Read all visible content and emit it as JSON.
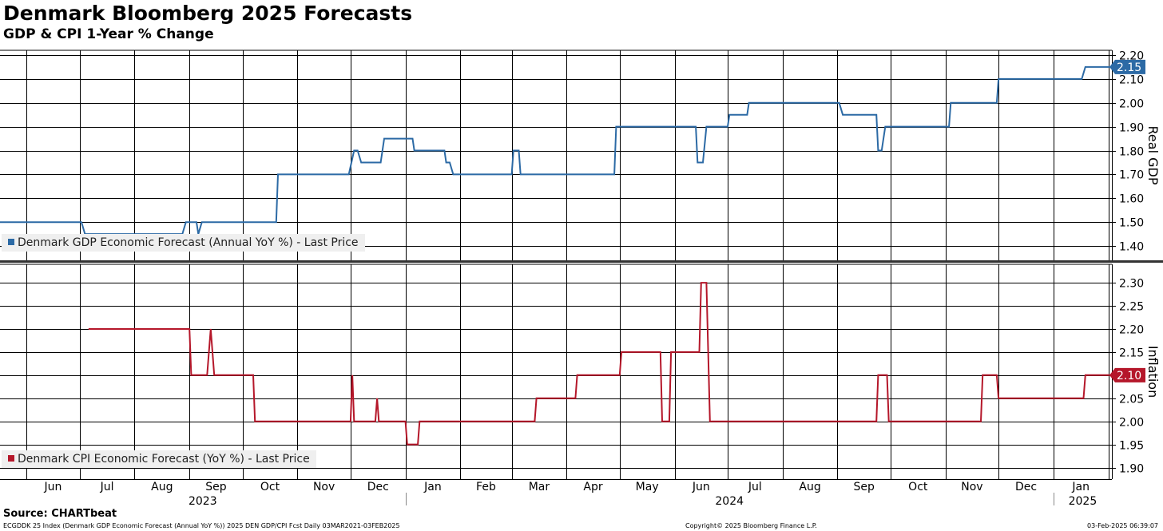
{
  "title": "Denmark Bloomberg 2025 Forecasts",
  "subtitle": "GDP & CPI 1-Year % Change",
  "source": "Source: CHARTbeat",
  "footer": {
    "left": "ECGDDK 25 Index (Denmark GDP Economic Forecast (Annual YoY %)) 2025 DEN GDP/CPI Fcst  Daily 03MAR2021-03FEB2025",
    "center": "Copyright© 2025 Bloomberg Finance L.P.",
    "right": "03-Feb-2025 06:39:07"
  },
  "colors": {
    "gdp": "#2c6aa5",
    "cpi": "#b5172a",
    "grid": "#000000"
  },
  "chart_data": {
    "type": "line",
    "x_axis": {
      "months": [
        "Jun",
        "Jul",
        "Aug",
        "Sep",
        "Oct",
        "Nov",
        "Dec",
        "Jan",
        "Feb",
        "Mar",
        "Apr",
        "May",
        "Jun",
        "Jul",
        "Aug",
        "Sep",
        "Oct",
        "Nov",
        "Dec",
        "Jan"
      ],
      "years": [
        "2023",
        "2024",
        "2025"
      ],
      "range": [
        "2023-05-17",
        "2025-02-03"
      ]
    },
    "panels": [
      {
        "id": "gdp",
        "axis_label": "Real GDP",
        "legend": "Denmark GDP Economic Forecast (Annual YoY %) - Last Price",
        "last_value": "2.15",
        "ylim": [
          1.34,
          2.22
        ],
        "yticks": [
          "2.20",
          "2.10",
          "2.00",
          "1.90",
          "1.80",
          "1.70",
          "1.60",
          "1.50",
          "1.40"
        ],
        "grid": true,
        "series": [
          {
            "name": "Denmark GDP Economic Forecast (Annual YoY %) - Last Price",
            "points": [
              [
                "2023-05-17",
                1.5
              ],
              [
                "2023-07-02",
                1.5
              ],
              [
                "2023-07-04",
                1.45
              ],
              [
                "2023-08-28",
                1.45
              ],
              [
                "2023-08-30",
                1.5
              ],
              [
                "2023-09-05",
                1.5
              ],
              [
                "2023-09-06",
                1.45
              ],
              [
                "2023-09-08",
                1.5
              ],
              [
                "2023-10-20",
                1.5
              ],
              [
                "2023-10-21",
                1.7
              ],
              [
                "2023-11-30",
                1.7
              ],
              [
                "2023-12-03",
                1.8
              ],
              [
                "2023-12-05",
                1.8
              ],
              [
                "2023-12-07",
                1.75
              ],
              [
                "2023-12-18",
                1.75
              ],
              [
                "2023-12-20",
                1.85
              ],
              [
                "2024-01-05",
                1.85
              ],
              [
                "2024-01-06",
                1.8
              ],
              [
                "2024-01-23",
                1.8
              ],
              [
                "2024-01-24",
                1.75
              ],
              [
                "2024-01-26",
                1.75
              ],
              [
                "2024-01-28",
                1.7
              ],
              [
                "2024-03-01",
                1.7
              ],
              [
                "2024-03-02",
                1.8
              ],
              [
                "2024-03-05",
                1.8
              ],
              [
                "2024-03-06",
                1.7
              ],
              [
                "2024-04-28",
                1.7
              ],
              [
                "2024-04-29",
                1.9
              ],
              [
                "2024-06-13",
                1.9
              ],
              [
                "2024-06-14",
                1.75
              ],
              [
                "2024-06-17",
                1.75
              ],
              [
                "2024-06-19",
                1.9
              ],
              [
                "2024-07-01",
                1.9
              ],
              [
                "2024-07-02",
                1.95
              ],
              [
                "2024-07-12",
                1.95
              ],
              [
                "2024-07-13",
                2.0
              ],
              [
                "2024-09-02",
                2.0
              ],
              [
                "2024-09-04",
                1.95
              ],
              [
                "2024-09-23",
                1.95
              ],
              [
                "2024-09-24",
                1.8
              ],
              [
                "2024-09-26",
                1.8
              ],
              [
                "2024-09-28",
                1.9
              ],
              [
                "2024-11-03",
                1.9
              ],
              [
                "2024-11-04",
                2.0
              ],
              [
                "2024-11-30",
                2.0
              ],
              [
                "2024-12-01",
                2.1
              ],
              [
                "2025-01-17",
                2.1
              ],
              [
                "2025-01-19",
                2.15
              ],
              [
                "2025-02-03",
                2.15
              ]
            ]
          }
        ]
      },
      {
        "id": "cpi",
        "axis_label": "Inflation",
        "legend": "Denmark CPI Economic Forecast (YoY %) - Last Price",
        "last_value": "2.10",
        "ylim": [
          1.875,
          2.34
        ],
        "yticks": [
          "2.30",
          "2.25",
          "2.20",
          "2.15",
          "2.10",
          "2.05",
          "2.00",
          "1.95",
          "1.90"
        ],
        "grid": true,
        "series": [
          {
            "name": "Denmark CPI Economic Forecast (YoY %) - Last Price",
            "points": [
              [
                "2023-07-06",
                2.2
              ],
              [
                "2023-09-01",
                2.2
              ],
              [
                "2023-09-02",
                2.1
              ],
              [
                "2023-09-11",
                2.1
              ],
              [
                "2023-09-13",
                2.2
              ],
              [
                "2023-09-15",
                2.1
              ],
              [
                "2023-10-07",
                2.1
              ],
              [
                "2023-10-08",
                2.0
              ],
              [
                "2023-12-01",
                2.0
              ],
              [
                "2023-12-02",
                2.1
              ],
              [
                "2023-12-03",
                2.0
              ],
              [
                "2023-12-15",
                2.0
              ],
              [
                "2023-12-16",
                2.05
              ],
              [
                "2023-12-17",
                2.0
              ],
              [
                "2024-01-01",
                2.0
              ],
              [
                "2024-01-02",
                1.95
              ],
              [
                "2024-01-08",
                1.95
              ],
              [
                "2024-01-09",
                2.0
              ],
              [
                "2024-03-14",
                2.0
              ],
              [
                "2024-03-15",
                2.05
              ],
              [
                "2024-04-06",
                2.05
              ],
              [
                "2024-04-07",
                2.1
              ],
              [
                "2024-05-01",
                2.1
              ],
              [
                "2024-05-02",
                2.15
              ],
              [
                "2024-05-24",
                2.15
              ],
              [
                "2024-05-25",
                2.0
              ],
              [
                "2024-05-29",
                2.0
              ],
              [
                "2024-05-30",
                2.15
              ],
              [
                "2024-06-15",
                2.15
              ],
              [
                "2024-06-16",
                2.3
              ],
              [
                "2024-06-19",
                2.3
              ],
              [
                "2024-06-21",
                2.0
              ],
              [
                "2024-09-23",
                2.0
              ],
              [
                "2024-09-24",
                2.1
              ],
              [
                "2024-09-29",
                2.1
              ],
              [
                "2024-09-30",
                2.0
              ],
              [
                "2024-11-21",
                2.0
              ],
              [
                "2024-11-22",
                2.1
              ],
              [
                "2024-11-30",
                2.1
              ],
              [
                "2024-12-01",
                2.05
              ],
              [
                "2025-01-18",
                2.05
              ],
              [
                "2025-01-19",
                2.1
              ],
              [
                "2025-02-03",
                2.1
              ]
            ]
          }
        ]
      }
    ]
  }
}
